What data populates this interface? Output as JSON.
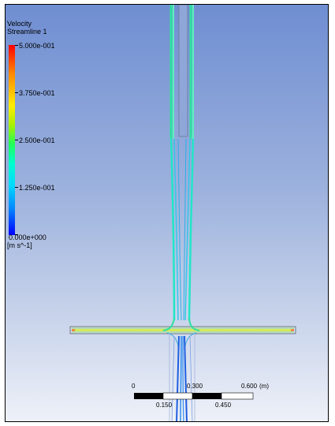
{
  "legend": {
    "title": "Velocity",
    "subtitle": "Streamline 1",
    "labels": [
      "5.000e-001",
      "3.750e-001",
      "2.500e-001",
      "1.250e-001",
      "0.000e+000"
    ],
    "unit": "[m s^-1]",
    "colors": {
      "max": "#ff0000",
      "high": "#ffee00",
      "mid": "#22ff55",
      "low": "#00d8ff",
      "min": "#0000ff"
    }
  },
  "scale_bar": {
    "top_labels": [
      "0",
      "0.300",
      "0.600"
    ],
    "bottom_labels": [
      "0.150",
      "0.450"
    ],
    "unit": "(m)"
  },
  "colors": {
    "background_top": "#6f8ed2",
    "background_bottom": "#eef1f8",
    "streamline_upper": "#2fe0a0",
    "streamline_horizontal": "#d6e85a",
    "streamline_lower": "#1e5fe0"
  }
}
